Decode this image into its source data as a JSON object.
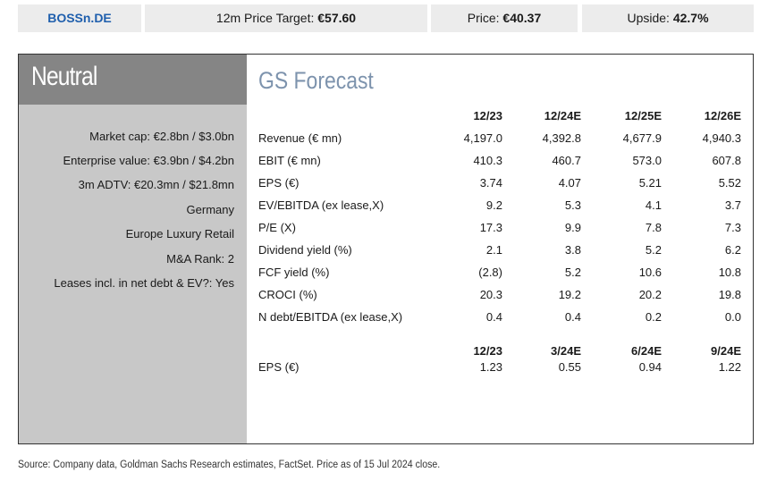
{
  "header": {
    "ticker": "BOSSn.DE",
    "target_label": "12m Price Target: ",
    "target_value": "€57.60",
    "price_label": "Price: ",
    "price_value": "€40.37",
    "upside_label": "Upside: ",
    "upside_value": "42.7%"
  },
  "rating": "Neutral",
  "meta": [
    "Market cap: €2.8bn / $3.0bn",
    "Enterprise value: €3.9bn / $4.2bn",
    "3m ADTV: €20.3mn / $21.8mn",
    "Germany",
    "Europe Luxury Retail",
    "M&A Rank: 2",
    "Leases incl. in net debt & EV?: Yes"
  ],
  "forecast": {
    "title": "GS Forecast",
    "columns": [
      "12/23",
      "12/24E",
      "12/25E",
      "12/26E"
    ],
    "rows": [
      {
        "label": "Revenue (€ mn)",
        "values": [
          "4,197.0",
          "4,392.8",
          "4,677.9",
          "4,940.3"
        ]
      },
      {
        "label": "EBIT (€ mn)",
        "values": [
          "410.3",
          "460.7",
          "573.0",
          "607.8"
        ]
      },
      {
        "label": "EPS (€)",
        "values": [
          "3.74",
          "4.07",
          "5.21",
          "5.52"
        ]
      },
      {
        "label": "EV/EBITDA (ex lease,X)",
        "values": [
          "9.2",
          "5.3",
          "4.1",
          "3.7"
        ]
      },
      {
        "label": "P/E (X)",
        "values": [
          "17.3",
          "9.9",
          "7.8",
          "7.3"
        ]
      },
      {
        "label": "Dividend yield (%)",
        "values": [
          "2.1",
          "3.8",
          "5.2",
          "6.2"
        ]
      },
      {
        "label": "FCF yield (%)",
        "values": [
          "(2.8)",
          "5.2",
          "10.6",
          "10.8"
        ]
      },
      {
        "label": "CROCI (%)",
        "values": [
          "20.3",
          "19.2",
          "20.2",
          "19.8"
        ]
      },
      {
        "label": "N debt/EBITDA (ex lease,X)",
        "values": [
          "0.4",
          "0.4",
          "0.2",
          "0.0"
        ]
      }
    ],
    "quarterly_columns": [
      "12/23",
      "3/24E",
      "6/24E",
      "9/24E"
    ],
    "quarterly_rows": [
      {
        "label": "EPS (€)",
        "values": [
          "1.23",
          "0.55",
          "0.94",
          "1.22"
        ]
      }
    ]
  },
  "source": "Source: Company data, Goldman Sachs Research estimates, FactSet. Price as of 15 Jul 2024 close."
}
